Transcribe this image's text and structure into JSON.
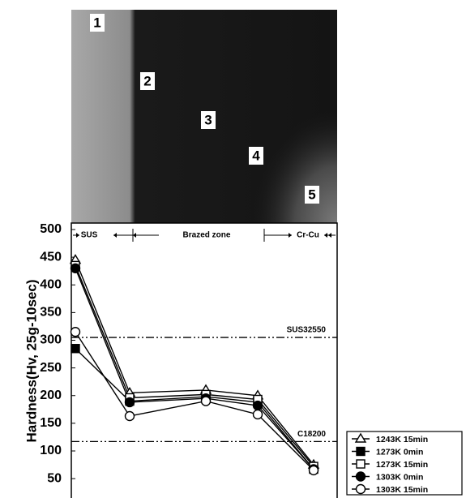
{
  "chart_data": {
    "type": "line",
    "y_axis_label": "Hardness(Hv, 25g-10sec)",
    "categories": [
      "1",
      "2",
      "3",
      "4",
      "5"
    ],
    "zones": [
      "SUS",
      "Brazed zone",
      "Cr-Cu"
    ],
    "ylim": [
      15,
      500
    ],
    "yticks": [
      50,
      100,
      150,
      200,
      250,
      300,
      350,
      400,
      450,
      500
    ],
    "reference_lines": [
      {
        "label": "SUS32550",
        "value": 305
      },
      {
        "label": "C18200",
        "value": 117
      }
    ],
    "legend": "bottom-right",
    "series": [
      {
        "name": "1243K 15min",
        "color": "#000000",
        "marker": "triangle",
        "filled": false,
        "values": [
          445,
          205,
          210,
          200,
          75
        ]
      },
      {
        "name": "1273K 0min",
        "color": "#000000",
        "marker": "square",
        "filled": true,
        "values": [
          285,
          190,
          198,
          188,
          67
        ]
      },
      {
        "name": "1273K 15min",
        "color": "#000000",
        "marker": "square",
        "filled": false,
        "values": [
          435,
          196,
          202,
          193,
          72
        ]
      },
      {
        "name": "1303K 0min",
        "color": "#000000",
        "marker": "circle",
        "filled": true,
        "values": [
          430,
          188,
          195,
          182,
          67
        ]
      },
      {
        "name": "1303K 15min",
        "color": "#000000",
        "marker": "circle",
        "filled": false,
        "values": [
          315,
          163,
          190,
          166,
          65
        ]
      }
    ]
  }
}
